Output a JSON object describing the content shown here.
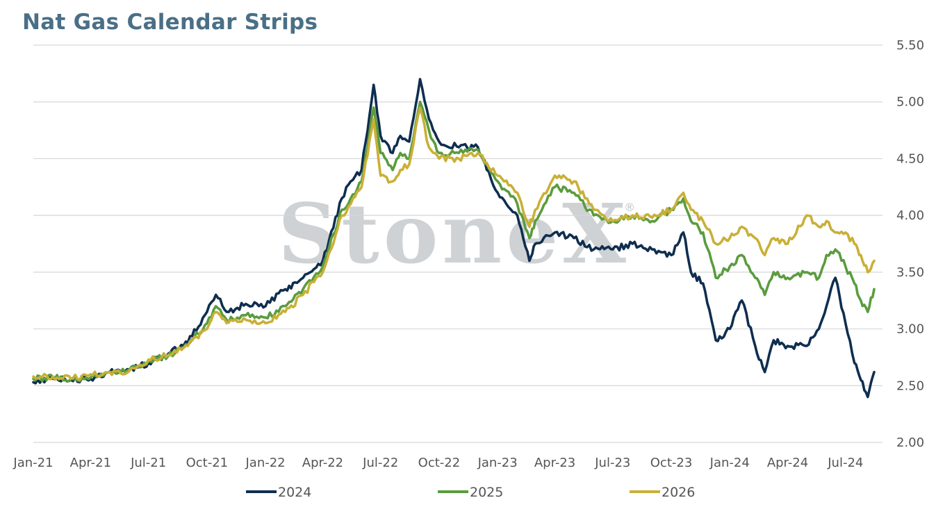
{
  "chart_data": {
    "type": "line",
    "title": "Nat Gas Calendar Strips",
    "watermark": "StoneX",
    "watermark_mark": "®",
    "x_start": "2021-01-01",
    "x_end": "2024-08-15",
    "xlabels": [
      "Jan-21",
      "Apr-21",
      "Jul-21",
      "Oct-21",
      "Jan-22",
      "Apr-22",
      "Jul-22",
      "Oct-22",
      "Jan-23",
      "Apr-23",
      "Jul-23",
      "Oct-23",
      "Jan-24",
      "Apr-24",
      "Jul-24"
    ],
    "xlabel_dates": [
      "2021-01-01",
      "2021-04-01",
      "2021-07-01",
      "2021-10-01",
      "2022-01-01",
      "2022-04-01",
      "2022-07-01",
      "2022-10-01",
      "2023-01-01",
      "2023-04-01",
      "2023-07-01",
      "2023-10-01",
      "2024-01-01",
      "2024-04-01",
      "2024-07-01"
    ],
    "ylim": [
      2.0,
      5.5
    ],
    "yticks": [
      2.0,
      2.5,
      3.0,
      3.5,
      4.0,
      4.5,
      5.0,
      5.5
    ],
    "ytick_labels": [
      "2.00",
      "2.50",
      "3.00",
      "3.50",
      "4.00",
      "4.50",
      "5.00",
      "5.50"
    ],
    "y_axis_position": "right",
    "grid": "horizontal",
    "legend_position": "bottom",
    "series": [
      {
        "name": "2024",
        "color": "#0f2e4f",
        "points": [
          [
            "2021-01-01",
            2.53
          ],
          [
            "2021-02-01",
            2.56
          ],
          [
            "2021-03-01",
            2.55
          ],
          [
            "2021-04-01",
            2.56
          ],
          [
            "2021-05-01",
            2.62
          ],
          [
            "2021-06-01",
            2.64
          ],
          [
            "2021-07-01",
            2.7
          ],
          [
            "2021-08-01",
            2.78
          ],
          [
            "2021-09-01",
            2.88
          ],
          [
            "2021-10-01",
            3.15
          ],
          [
            "2021-10-15",
            3.3
          ],
          [
            "2021-11-01",
            3.15
          ],
          [
            "2021-12-01",
            3.22
          ],
          [
            "2022-01-01",
            3.2
          ],
          [
            "2022-02-01",
            3.35
          ],
          [
            "2022-03-01",
            3.45
          ],
          [
            "2022-04-01",
            3.6
          ],
          [
            "2022-05-01",
            4.15
          ],
          [
            "2022-05-15",
            4.3
          ],
          [
            "2022-06-01",
            4.4
          ],
          [
            "2022-06-20",
            5.15
          ],
          [
            "2022-07-01",
            4.7
          ],
          [
            "2022-07-20",
            4.55
          ],
          [
            "2022-08-01",
            4.7
          ],
          [
            "2022-08-15",
            4.65
          ],
          [
            "2022-09-01",
            5.2
          ],
          [
            "2022-09-15",
            4.85
          ],
          [
            "2022-10-01",
            4.65
          ],
          [
            "2022-11-01",
            4.6
          ],
          [
            "2022-12-01",
            4.6
          ],
          [
            "2023-01-01",
            4.2
          ],
          [
            "2023-02-01",
            4.0
          ],
          [
            "2023-02-20",
            3.6
          ],
          [
            "2023-03-01",
            3.75
          ],
          [
            "2023-04-01",
            3.85
          ],
          [
            "2023-05-01",
            3.8
          ],
          [
            "2023-06-01",
            3.7
          ],
          [
            "2023-07-01",
            3.7
          ],
          [
            "2023-08-01",
            3.75
          ],
          [
            "2023-09-01",
            3.7
          ],
          [
            "2023-10-01",
            3.65
          ],
          [
            "2023-10-20",
            3.85
          ],
          [
            "2023-11-01",
            3.5
          ],
          [
            "2023-11-20",
            3.4
          ],
          [
            "2023-12-10",
            2.9
          ],
          [
            "2024-01-01",
            3.0
          ],
          [
            "2024-01-20",
            3.25
          ],
          [
            "2024-02-10",
            2.85
          ],
          [
            "2024-02-25",
            2.62
          ],
          [
            "2024-03-10",
            2.9
          ],
          [
            "2024-04-01",
            2.85
          ],
          [
            "2024-05-01",
            2.85
          ],
          [
            "2024-05-20",
            3.0
          ],
          [
            "2024-06-01",
            3.2
          ],
          [
            "2024-06-15",
            3.45
          ],
          [
            "2024-07-01",
            3.05
          ],
          [
            "2024-07-15",
            2.7
          ],
          [
            "2024-07-25",
            2.55
          ],
          [
            "2024-08-05",
            2.4
          ],
          [
            "2024-08-15",
            2.62
          ]
        ]
      },
      {
        "name": "2025",
        "color": "#5a9c3e",
        "points": [
          [
            "2021-01-01",
            2.56
          ],
          [
            "2021-02-01",
            2.57
          ],
          [
            "2021-03-01",
            2.56
          ],
          [
            "2021-04-01",
            2.57
          ],
          [
            "2021-05-01",
            2.62
          ],
          [
            "2021-06-01",
            2.64
          ],
          [
            "2021-07-01",
            2.72
          ],
          [
            "2021-08-01",
            2.76
          ],
          [
            "2021-09-01",
            2.86
          ],
          [
            "2021-10-01",
            3.05
          ],
          [
            "2021-10-15",
            3.2
          ],
          [
            "2021-11-01",
            3.08
          ],
          [
            "2021-12-01",
            3.12
          ],
          [
            "2022-01-01",
            3.1
          ],
          [
            "2022-02-01",
            3.2
          ],
          [
            "2022-03-01",
            3.35
          ],
          [
            "2022-04-01",
            3.55
          ],
          [
            "2022-05-01",
            4.05
          ],
          [
            "2022-05-15",
            4.15
          ],
          [
            "2022-06-01",
            4.3
          ],
          [
            "2022-06-20",
            4.95
          ],
          [
            "2022-07-01",
            4.55
          ],
          [
            "2022-07-20",
            4.4
          ],
          [
            "2022-08-01",
            4.55
          ],
          [
            "2022-08-15",
            4.5
          ],
          [
            "2022-09-01",
            5.0
          ],
          [
            "2022-09-15",
            4.75
          ],
          [
            "2022-10-01",
            4.55
          ],
          [
            "2022-11-01",
            4.55
          ],
          [
            "2022-12-01",
            4.58
          ],
          [
            "2023-01-01",
            4.3
          ],
          [
            "2023-02-01",
            4.1
          ],
          [
            "2023-02-20",
            3.8
          ],
          [
            "2023-03-01",
            3.95
          ],
          [
            "2023-04-01",
            4.25
          ],
          [
            "2023-05-01",
            4.2
          ],
          [
            "2023-06-01",
            4.0
          ],
          [
            "2023-07-01",
            3.95
          ],
          [
            "2023-08-01",
            4.0
          ],
          [
            "2023-09-01",
            3.95
          ],
          [
            "2023-10-01",
            4.05
          ],
          [
            "2023-10-20",
            4.15
          ],
          [
            "2023-11-01",
            3.95
          ],
          [
            "2023-11-20",
            3.85
          ],
          [
            "2023-12-10",
            3.45
          ],
          [
            "2024-01-01",
            3.55
          ],
          [
            "2024-01-20",
            3.65
          ],
          [
            "2024-02-10",
            3.45
          ],
          [
            "2024-02-25",
            3.3
          ],
          [
            "2024-03-10",
            3.5
          ],
          [
            "2024-04-01",
            3.45
          ],
          [
            "2024-05-01",
            3.5
          ],
          [
            "2024-05-20",
            3.45
          ],
          [
            "2024-06-01",
            3.65
          ],
          [
            "2024-06-15",
            3.7
          ],
          [
            "2024-07-01",
            3.55
          ],
          [
            "2024-07-15",
            3.4
          ],
          [
            "2024-07-25",
            3.25
          ],
          [
            "2024-08-05",
            3.15
          ],
          [
            "2024-08-15",
            3.35
          ]
        ]
      },
      {
        "name": "2026",
        "color": "#c9b037",
        "points": [
          [
            "2021-01-01",
            2.58
          ],
          [
            "2021-02-01",
            2.58
          ],
          [
            "2021-03-01",
            2.56
          ],
          [
            "2021-04-01",
            2.6
          ],
          [
            "2021-05-01",
            2.62
          ],
          [
            "2021-06-01",
            2.63
          ],
          [
            "2021-07-01",
            2.73
          ],
          [
            "2021-08-01",
            2.77
          ],
          [
            "2021-09-01",
            2.85
          ],
          [
            "2021-10-01",
            3.0
          ],
          [
            "2021-10-15",
            3.15
          ],
          [
            "2021-11-01",
            3.05
          ],
          [
            "2021-12-01",
            3.08
          ],
          [
            "2022-01-01",
            3.05
          ],
          [
            "2022-02-01",
            3.15
          ],
          [
            "2022-03-01",
            3.3
          ],
          [
            "2022-04-01",
            3.5
          ],
          [
            "2022-05-01",
            4.0
          ],
          [
            "2022-05-15",
            4.1
          ],
          [
            "2022-06-01",
            4.25
          ],
          [
            "2022-06-20",
            4.85
          ],
          [
            "2022-07-01",
            4.35
          ],
          [
            "2022-07-20",
            4.3
          ],
          [
            "2022-08-01",
            4.4
          ],
          [
            "2022-08-15",
            4.45
          ],
          [
            "2022-09-01",
            4.95
          ],
          [
            "2022-09-15",
            4.6
          ],
          [
            "2022-10-01",
            4.5
          ],
          [
            "2022-11-01",
            4.5
          ],
          [
            "2022-12-01",
            4.55
          ],
          [
            "2023-01-01",
            4.35
          ],
          [
            "2023-02-01",
            4.2
          ],
          [
            "2023-02-20",
            3.9
          ],
          [
            "2023-03-01",
            4.05
          ],
          [
            "2023-04-01",
            4.35
          ],
          [
            "2023-05-01",
            4.3
          ],
          [
            "2023-06-01",
            4.05
          ],
          [
            "2023-07-01",
            3.95
          ],
          [
            "2023-08-01",
            4.0
          ],
          [
            "2023-09-01",
            3.98
          ],
          [
            "2023-10-01",
            4.05
          ],
          [
            "2023-10-20",
            4.2
          ],
          [
            "2023-11-01",
            4.05
          ],
          [
            "2023-11-20",
            3.95
          ],
          [
            "2023-12-10",
            3.75
          ],
          [
            "2024-01-01",
            3.8
          ],
          [
            "2024-01-20",
            3.9
          ],
          [
            "2024-02-10",
            3.8
          ],
          [
            "2024-02-25",
            3.65
          ],
          [
            "2024-03-10",
            3.8
          ],
          [
            "2024-04-01",
            3.75
          ],
          [
            "2024-05-01",
            4.0
          ],
          [
            "2024-05-20",
            3.9
          ],
          [
            "2024-06-01",
            3.95
          ],
          [
            "2024-06-15",
            3.85
          ],
          [
            "2024-07-01",
            3.85
          ],
          [
            "2024-07-15",
            3.75
          ],
          [
            "2024-07-25",
            3.65
          ],
          [
            "2024-08-05",
            3.5
          ],
          [
            "2024-08-15",
            3.6
          ]
        ]
      }
    ]
  }
}
